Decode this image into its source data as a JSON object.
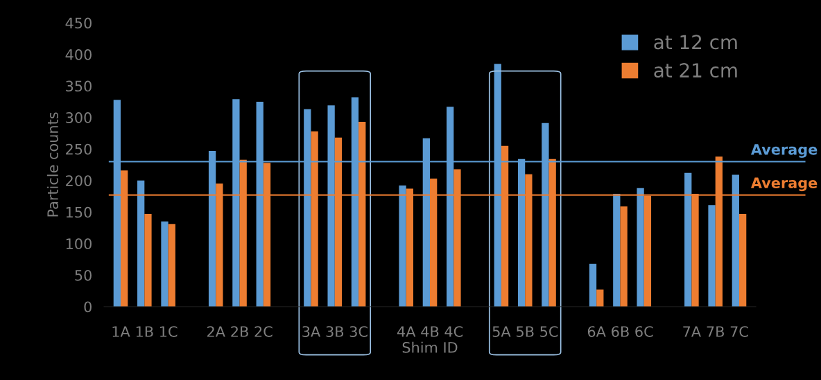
{
  "chart_data": {
    "type": "bar",
    "xlabel": "Shim ID",
    "ylabel": "Particle counts",
    "categories": [
      "1A",
      "1B",
      "1C",
      null,
      "2A",
      "2B",
      "2C",
      null,
      "3A",
      "3B",
      "3C",
      null,
      "4A",
      "4B",
      "4C",
      null,
      "5A",
      "5B",
      "5C",
      null,
      "6A",
      "6B",
      "6C",
      null,
      "7A",
      "7B",
      "7C"
    ],
    "series": [
      {
        "name": "at 12 cm",
        "color": "#5b9bd5",
        "values": [
          328,
          200,
          135,
          null,
          247,
          329,
          325,
          null,
          313,
          319,
          332,
          null,
          192,
          267,
          317,
          null,
          385,
          234,
          291,
          null,
          68,
          179,
          188,
          null,
          212,
          161,
          209
        ]
      },
      {
        "name": "at 21 cm",
        "color": "#ed7d31",
        "values": [
          216,
          147,
          131,
          null,
          195,
          233,
          228,
          null,
          278,
          268,
          293,
          null,
          187,
          203,
          218,
          null,
          255,
          210,
          234,
          null,
          27,
          159,
          176,
          null,
          179,
          238,
          147
        ]
      }
    ],
    "ylim": [
      0,
      450
    ],
    "yticks": [
      0,
      50,
      100,
      150,
      200,
      250,
      300,
      350,
      400,
      450
    ],
    "ref_lines": [
      {
        "axis": "y",
        "value": 230,
        "label": "Average",
        "color": "#5b9bd5"
      },
      {
        "axis": "y",
        "value": 177,
        "label": "Average",
        "color": "#ed7d31"
      }
    ],
    "legend": "top right",
    "grid": false
  }
}
